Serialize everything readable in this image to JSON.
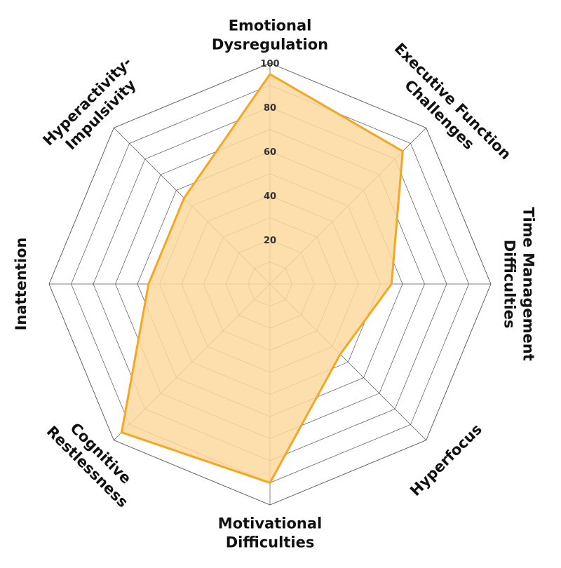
{
  "chart_data": {
    "type": "radar",
    "axes": [
      "Emotional Dysregulation",
      "Executive Function Challenges",
      "Time Management Difficulties",
      "Hyperfocus",
      "Motivational Difficulties",
      "Cognitive Restlessness",
      "Inattention",
      "Hyperactivity-Impulsivity"
    ],
    "axis_label_lines": [
      [
        "Emotional",
        "Dysregulation"
      ],
      [
        "Executive Function",
        "Challenges"
      ],
      [
        "Time Management",
        "Difficulties"
      ],
      [
        "Hyperfocus"
      ],
      [
        "Motivational",
        "Difficulties"
      ],
      [
        "Cognitive",
        "Restlessness"
      ],
      [
        "Inattention"
      ],
      [
        "Hyperactivity-",
        "Impulsivity"
      ]
    ],
    "series": [
      {
        "values": [
          95,
          85,
          55,
          45,
          90,
          95,
          55,
          55
        ]
      }
    ],
    "range": [
      0,
      100
    ],
    "ticks": [
      "20",
      "40",
      "60",
      "80",
      "100"
    ],
    "grid": true,
    "legend": "none"
  },
  "colors": {
    "fill": "#fdd9a0",
    "stroke": "#f5a623",
    "grid": "#555555"
  }
}
